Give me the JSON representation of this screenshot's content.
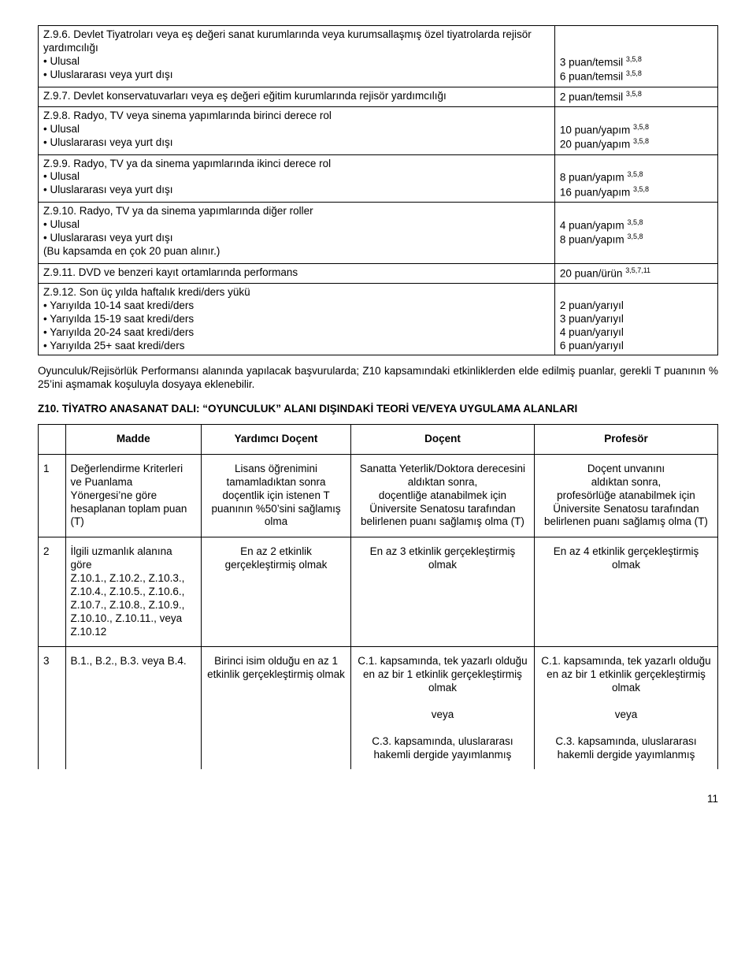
{
  "top_table": {
    "rows": [
      {
        "left": "Z.9.6. Devlet Tiyatroları veya eş değeri sanat kurumlarında veya kurumsallaşmış özel tiyatrolarda rejisör yardımcılığı\n• Ulusal\n• Uluslararası veya yurt dışı",
        "right_lines": [
          "",
          "",
          "3 puan/temsil §3,5,8",
          "6 puan/temsil §3,5,8"
        ]
      },
      {
        "left": "Z.9.7. Devlet konservatuvarları veya eş değeri eğitim kurumlarında rejisör yardımcılığı",
        "right_lines": [
          "2 puan/temsil §3,5,8"
        ]
      },
      {
        "left": "Z.9.8. Radyo, TV veya sinema yapımlarında birinci derece rol\n• Ulusal\n• Uluslararası veya yurt dışı",
        "right_lines": [
          "",
          "10 puan/yapım §3,5,8",
          "20 puan/yapım §3,5,8"
        ]
      },
      {
        "left": "Z.9.9. Radyo, TV ya da sinema yapımlarında ikinci derece rol\n• Ulusal\n• Uluslararası veya yurt dışı",
        "right_lines": [
          "",
          "8 puan/yapım §3,5,8",
          "16 puan/yapım §3,5,8"
        ]
      },
      {
        "left": "Z.9.10. Radyo, TV ya da sinema yapımlarında diğer roller\n• Ulusal\n• Uluslararası veya yurt dışı\n(Bu kapsamda en çok 20 puan alınır.)",
        "right_lines": [
          "",
          "4 puan/yapım §3,5,8",
          "8 puan/yapım §3,5,8",
          ""
        ]
      },
      {
        "left": "Z.9.11. DVD ve benzeri kayıt ortamlarında performans",
        "right_lines": [
          "20 puan/ürün §3,5,7,11"
        ]
      },
      {
        "left": "Z.9.12. Son üç yılda haftalık kredi/ders yükü\n• Yarıyılda 10-14 saat kredi/ders\n• Yarıyılda 15-19 saat kredi/ders\n• Yarıyılda 20-24 saat kredi/ders\n• Yarıyılda 25+ saat kredi/ders",
        "right_lines": [
          "",
          "2 puan/yarıyıl",
          "3 puan/yarıyıl",
          "4 puan/yarıyıl",
          "6 puan/yarıyıl"
        ]
      }
    ]
  },
  "paragraph": "Oyunculuk/Rejisörlük Performansı alanında yapılacak başvurularda; Z10 kapsamındaki etkinliklerden elde edilmiş puanlar, gerekli T puanının % 25’ini aşmamak koşuluyla dosyaya eklenebilir.",
  "section_title": "Z10. TİYATRO ANASANAT DALI: “OYUNCULUK” ALANI DIŞINDAKİ TEORİ VE/VEYA UYGULAMA ALANLARI",
  "criteria_table": {
    "headers": [
      "",
      "Madde",
      "Yardımcı Doçent",
      "Doçent",
      "Profesör"
    ],
    "rows": [
      {
        "n": "1",
        "madde": "Değerlendirme Kriterleri\nve Puanlama Yönergesi’ne göre hesaplanan toplam puan (T)",
        "yd": "Lisans öğrenimini tamamladıktan sonra doçentlik için istenen T puanının %50’sini sağlamış olma",
        "doc": "Sanatta Yeterlik/Doktora derecesini\naldıktan sonra,\ndoçentliğe atanabilmek için Üniversite Senatosu tarafından belirlenen puanı sağlamış olma (T)",
        "prof": "Doçent unvanını\naldıktan sonra,\nprofesörlüğe atanabilmek için Üniversite Senatosu tarafından belirlenen puanı sağlamış olma (T)"
      },
      {
        "n": "2",
        "madde": "İlgili uzmanlık alanına göre\nZ.10.1.,  Z.10.2., Z.10.3.,\nZ.10.4.,  Z.10.5., Z.10.6.,\nZ.10.7.,  Z.10.8., Z.10.9.,\nZ.10.10.,  Z.10.11., veya Z.10.12",
        "yd": "En az 2 etkinlik gerçekleştirmiş olmak",
        "doc": "En az 3 etkinlik gerçekleştirmiş olmak",
        "prof": "En az 4 etkinlik gerçekleştirmiş olmak"
      },
      {
        "n": "3",
        "madde": "B.1., B.2., B.3. veya B.4.",
        "yd": "Birinci isim olduğu en az 1 etkinlik gerçekleştirmiş olmak",
        "doc": "C.1. kapsamında, tek yazarlı olduğu en az bir 1 etkinlik gerçekleştirmiş olmak",
        "prof": "C.1. kapsamında, tek yazarlı olduğu en az bir 1 etkinlik gerçekleştirmiş olmak",
        "veya": "veya",
        "doc2": "C.3. kapsamında, uluslararası hakemli dergide yayımlanmış",
        "prof2": "C.3. kapsamında, uluslararası hakemli dergide yayımlanmış"
      }
    ]
  },
  "page_number": "11"
}
